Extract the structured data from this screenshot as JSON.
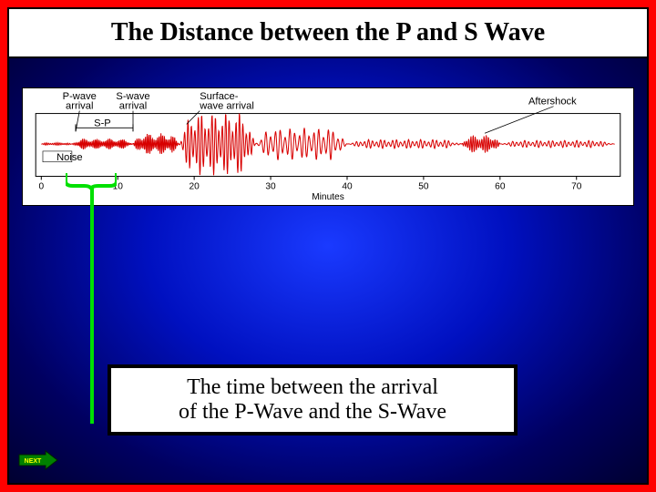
{
  "title": "The Distance between the P and S Wave",
  "caption_line1": "The time between the arrival",
  "caption_line2": "of the P-Wave and the S-Wave",
  "next_label": "NEXT",
  "seismogram": {
    "type": "line",
    "background_color": "#ffffff",
    "trace_color": "#d80000",
    "axis_color": "#000000",
    "xlabel": "Minutes",
    "xlim": [
      0,
      75
    ],
    "xtick_step": 10,
    "baseline_y": 50,
    "label_fontsize": 10,
    "annotations": {
      "p_wave": {
        "text_l1": "P-wave",
        "text_l2": "arrival",
        "x": 5
      },
      "s_wave": {
        "text_l1": "S-wave",
        "text_l2": "arrival",
        "x": 12
      },
      "surface": {
        "text_l1": "Surface-",
        "text_l2": "wave arrival",
        "x": 20
      },
      "sp": "S-P",
      "noise": "Noise",
      "aftershock": "Aftershock"
    },
    "segments": [
      {
        "x_start": 0,
        "x_end": 4,
        "amp": 1.5,
        "freq": 25
      },
      {
        "x_start": 4,
        "x_end": 12,
        "amp": 6,
        "freq": 30
      },
      {
        "x_start": 12,
        "x_end": 18,
        "amp": 12,
        "freq": 28
      },
      {
        "x_start": 18,
        "x_end": 28,
        "amp": 35,
        "freq": 14
      },
      {
        "x_start": 28,
        "x_end": 40,
        "amp": 18,
        "freq": 10
      },
      {
        "x_start": 40,
        "x_end": 55,
        "amp": 5,
        "freq": 12
      },
      {
        "x_start": 55,
        "x_end": 60,
        "amp": 10,
        "freq": 22
      },
      {
        "x_start": 60,
        "x_end": 75,
        "amp": 4,
        "freq": 12
      }
    ]
  },
  "bracket_color": "#00e000",
  "pointer_color": "#00e000",
  "next_button": {
    "fill": "#008000",
    "text_color": "#ffff00",
    "border": "#002000"
  }
}
